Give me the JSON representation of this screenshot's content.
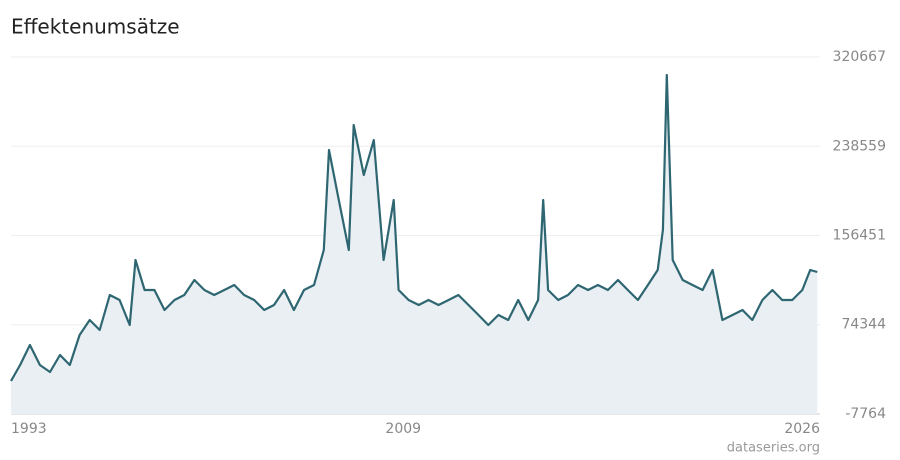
{
  "chart_data": {
    "type": "area",
    "title": "Effektenumsätze",
    "source": "dataseries.org",
    "color": "#2e6672",
    "fill": "#e9eff2",
    "grid": true,
    "xlim": [
      1993,
      2026
    ],
    "xticks": [
      1993,
      2009,
      2026
    ],
    "ylim": [
      -7764,
      320667
    ],
    "yticks": [
      -7764,
      74344,
      156451,
      238559,
      320667
    ],
    "x": [
      1993.0,
      1993.37,
      1993.77,
      1994.18,
      1994.59,
      1995.0,
      1995.4,
      1995.8,
      1996.21,
      1996.62,
      1997.03,
      1997.43,
      1997.84,
      1998.08,
      1998.45,
      1998.85,
      1999.26,
      1999.67,
      2000.07,
      2000.48,
      2000.89,
      2001.29,
      2001.7,
      2002.11,
      2002.51,
      2002.92,
      2003.33,
      2003.73,
      2004.14,
      2004.54,
      2004.95,
      2005.36,
      2005.76,
      2005.97,
      2006.37,
      2006.78,
      2006.98,
      2007.39,
      2007.8,
      2008.2,
      2008.61,
      2008.81,
      2009.22,
      2009.63,
      2010.03,
      2010.44,
      2010.85,
      2011.25,
      2011.66,
      2012.07,
      2012.47,
      2012.88,
      2013.28,
      2013.69,
      2014.1,
      2014.5,
      2014.71,
      2014.91,
      2015.32,
      2015.72,
      2016.13,
      2016.54,
      2016.94,
      2017.35,
      2017.76,
      2018.16,
      2018.57,
      2018.98,
      2019.38,
      2019.59,
      2019.75,
      2019.99,
      2020.4,
      2020.8,
      2021.21,
      2021.62,
      2022.02,
      2022.43,
      2022.84,
      2023.24,
      2023.65,
      2024.06,
      2024.46,
      2024.87,
      2025.28,
      2025.6,
      2025.89
    ],
    "values": [
      22596,
      37316,
      55716,
      37316,
      30876,
      46516,
      37316,
      64916,
      78716,
      69516,
      101716,
      97116,
      74116,
      133916,
      106316,
      106316,
      87916,
      97116,
      101716,
      115516,
      106316,
      101716,
      106316,
      110916,
      101716,
      97116,
      87916,
      92516,
      106316,
      87916,
      106316,
      110916,
      143116,
      235116,
      189116,
      143116,
      258116,
      212116,
      244316,
      133916,
      189116,
      106316,
      97116,
      92516,
      97116,
      92516,
      97116,
      101716,
      92516,
      83316,
      74116,
      83316,
      78716,
      97116,
      78716,
      97116,
      189116,
      106316,
      97116,
      101716,
      110916,
      106316,
      110916,
      106316,
      115516,
      106316,
      97116,
      110916,
      124716,
      161516,
      304116,
      133916,
      115516,
      110916,
      106316,
      124716,
      78716,
      83316,
      87916,
      78716,
      97116,
      106316,
      97116,
      97116,
      106316,
      124716,
      122876
    ]
  }
}
